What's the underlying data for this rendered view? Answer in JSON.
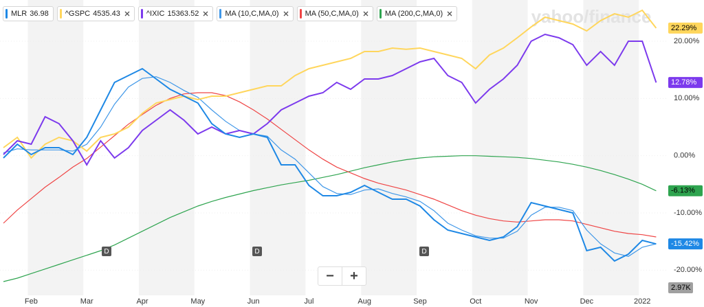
{
  "chart_data": {
    "type": "line",
    "watermark": "yahoo/finance",
    "categories": [
      null,
      null,
      "Feb",
      null,
      null,
      null,
      "Mar",
      null,
      null,
      null,
      "Apr",
      null,
      null,
      null,
      "May",
      null,
      null,
      null,
      "Jun",
      null,
      null,
      null,
      "Jul",
      null,
      null,
      null,
      "Aug",
      null,
      null,
      null,
      "Sep",
      null,
      null,
      null,
      "Oct",
      null,
      null,
      null,
      "Nov",
      null,
      null,
      null,
      "Dec",
      null,
      null,
      null,
      "2022",
      null
    ],
    "ylim": [
      -24.4,
      27.2
    ],
    "yticks": [
      {
        "value": 20,
        "label": "20.00%"
      },
      {
        "value": 10,
        "label": "10.00%"
      },
      {
        "value": 0,
        "label": "0.00%"
      },
      {
        "value": -10,
        "label": "-10.00%"
      },
      {
        "value": -20,
        "label": "-20.00%"
      }
    ],
    "series": [
      {
        "name": "MLR",
        "quote": "36.98",
        "color": "#1e88e5",
        "last_label": "-15.42%",
        "label_text_color": "#ffffff",
        "values": [
          -0.4,
          2,
          0.2,
          1.4,
          1.4,
          0.2,
          3.2,
          8,
          12.8,
          14,
          15.2,
          13.4,
          11.6,
          10.4,
          9.2,
          5.6,
          3.8,
          3.2,
          3.8,
          3.2,
          -1.6,
          -1.6,
          -5.2,
          -7,
          -7,
          -6.4,
          -5.2,
          -6.4,
          -7.6,
          -7.6,
          -8.8,
          -11.2,
          -13,
          -13.6,
          -14.2,
          -14.8,
          -14.2,
          -12.4,
          -8.2,
          -8.8,
          -9.4,
          -10,
          -16.6,
          -16,
          -18.4,
          -17.2,
          -14.8,
          -15.42
        ]
      },
      {
        "name": "^GSPC",
        "quote": "4535.43",
        "color": "#ffd65c",
        "last_label": "22.29%",
        "label_text_color": "#000000",
        "values": [
          1.4,
          3.2,
          -0.4,
          2,
          3.2,
          2.6,
          0.8,
          3.2,
          3.8,
          5,
          7.4,
          9.2,
          9.8,
          10.4,
          9.8,
          10.4,
          10.4,
          11,
          11.6,
          12.2,
          12.2,
          14,
          15.2,
          15.8,
          16.4,
          17,
          18.2,
          18.2,
          18.8,
          18.6,
          18.8,
          18.2,
          17.6,
          17,
          15.2,
          17.6,
          18.8,
          20.6,
          22.5,
          24.2,
          23.6,
          23,
          21.8,
          23.6,
          24.8,
          24.2,
          25.4,
          22.29
        ]
      },
      {
        "name": "^IXIC",
        "quote": "15363.52",
        "color": "#7c3aed",
        "last_label": "12.78%",
        "label_text_color": "#ffffff",
        "values": [
          0.2,
          2.6,
          2,
          6.8,
          5.6,
          2.6,
          -1.6,
          2.6,
          -0.4,
          1.4,
          4.4,
          6.2,
          8,
          6.2,
          3.8,
          5,
          3.8,
          4.4,
          3.8,
          5.6,
          8,
          9.2,
          10.4,
          11,
          12.8,
          11.6,
          13.4,
          13.4,
          14,
          15.2,
          16.4,
          17,
          14,
          12.8,
          9.2,
          11.6,
          13.4,
          15.8,
          20,
          21.2,
          20.6,
          19.4,
          15.8,
          18.2,
          15.8,
          20,
          20,
          12.78
        ]
      },
      {
        "name": "MA (10,C,MA,0)",
        "color": "#3f97e8",
        "values": [
          0.5,
          1.2,
          1,
          1,
          1,
          0.8,
          2,
          5,
          9,
          12,
          13.5,
          13.8,
          12.8,
          11.4,
          10.2,
          8,
          6,
          4.4,
          3.8,
          3.4,
          1,
          -0.6,
          -3,
          -5.4,
          -6.6,
          -6.8,
          -6,
          -5.8,
          -6.6,
          -7.2,
          -8,
          -9.6,
          -11.8,
          -13,
          -14,
          -14.4,
          -14.4,
          -13.2,
          -10.4,
          -9,
          -9,
          -9.6,
          -13,
          -15.4,
          -17,
          -17.6,
          -16,
          -15.4
        ]
      },
      {
        "name": "MA (50,C,MA,0)",
        "color": "#ef4444",
        "values": [
          -11.8,
          -9.5,
          -7.5,
          -5.5,
          -3.8,
          -2,
          -0.5,
          1.5,
          3.5,
          5.5,
          7.2,
          8.8,
          10,
          10.8,
          11,
          11,
          10.5,
          9.4,
          8,
          6.4,
          4.6,
          2.8,
          1,
          -0.6,
          -2,
          -3,
          -4,
          -4.8,
          -5.4,
          -6,
          -6.8,
          -7.6,
          -8.6,
          -9.6,
          -10.4,
          -11,
          -11.4,
          -11.6,
          -11.4,
          -11.2,
          -11.2,
          -11.4,
          -12,
          -12.6,
          -13.2,
          -13.6,
          -13.8,
          -14.2
        ]
      },
      {
        "name": "MA (200,C,MA,0)",
        "color": "#2ea44f",
        "last_label": "-6.13%",
        "label_text_color": "#000000",
        "values": [
          -22,
          -21.4,
          -20.6,
          -19.8,
          -19,
          -18.2,
          -17.4,
          -16.6,
          -15.6,
          -14.4,
          -13.2,
          -12,
          -10.8,
          -9.8,
          -8.8,
          -8,
          -7.3,
          -6.7,
          -6.1,
          -5.6,
          -5.1,
          -4.7,
          -4.3,
          -3.8,
          -3.3,
          -2.7,
          -2.1,
          -1.6,
          -1.1,
          -0.7,
          -0.4,
          -0.2,
          -0.1,
          0,
          0,
          -0.1,
          -0.2,
          -0.3,
          -0.5,
          -0.8,
          -1.1,
          -1.5,
          -2,
          -2.6,
          -3.3,
          -4.1,
          -5,
          -6.13
        ]
      }
    ],
    "events": [
      "D",
      "D",
      "D"
    ],
    "volume_label": "2.97K",
    "zoom_controls": [
      "−",
      "+"
    ]
  }
}
